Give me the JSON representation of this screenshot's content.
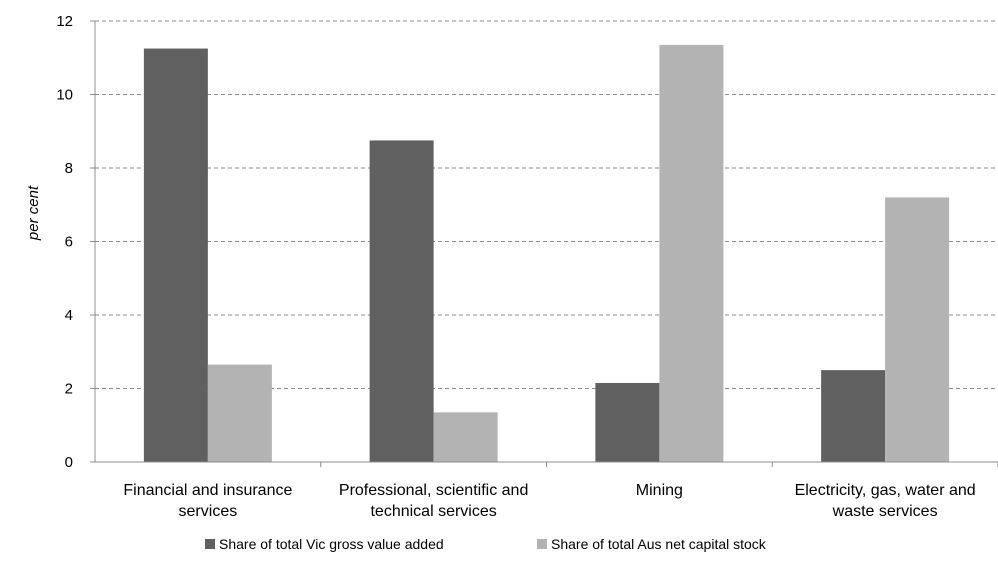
{
  "chart_data": {
    "type": "bar",
    "categories": [
      [
        "Financial and insurance",
        "services"
      ],
      [
        "Professional, scientific and",
        "technical services"
      ],
      [
        "Mining"
      ],
      [
        "Electricity, gas, water and",
        "waste services"
      ]
    ],
    "series": [
      {
        "name": "Share of total Vic gross value added",
        "values": [
          11.25,
          8.75,
          2.15,
          2.5
        ],
        "color": "#606060"
      },
      {
        "name": "Share of total Aus net capital stock",
        "values": [
          2.65,
          1.35,
          11.35,
          7.2
        ],
        "color": "#b3b3b3"
      }
    ],
    "ylabel": "per cent",
    "ylim": [
      0,
      12
    ],
    "yticks": [
      0,
      2,
      4,
      6,
      8,
      10,
      12
    ],
    "grid": true,
    "legend_position": "bottom"
  }
}
